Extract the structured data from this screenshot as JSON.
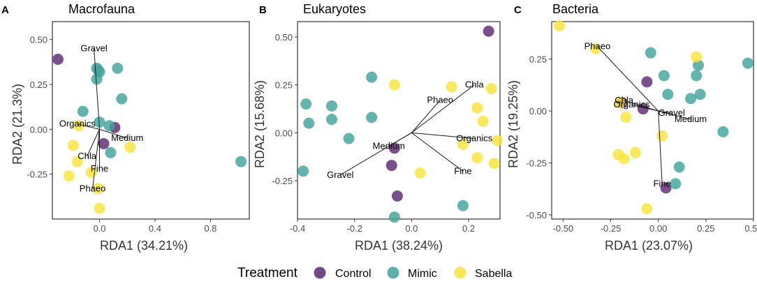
{
  "legend": {
    "title": "Treatment",
    "items": [
      {
        "name": "Control",
        "color": "#5B2A72"
      },
      {
        "name": "Mimic",
        "color": "#3FA39A"
      },
      {
        "name": "Sabella",
        "color": "#F9E33B"
      }
    ]
  },
  "chart_data": [
    {
      "type": "scatter",
      "panel_label": "A",
      "title": "Macrofauna",
      "xlabel": "RDA1 (34.21%)",
      "ylabel": "RDA2 (21.3%)",
      "xlim": [
        -0.34,
        1.08
      ],
      "ylim": [
        -0.5,
        0.6
      ],
      "xticks": [
        0.0,
        0.4,
        0.8
      ],
      "xtick_labels": [
        "0.0",
        "0.4",
        "0.8"
      ],
      "yticks": [
        -0.25,
        0.0,
        0.25,
        0.5
      ],
      "ytick_labels": [
        "-0.25",
        "0.00",
        "0.25",
        "0.50"
      ],
      "series": [
        {
          "name": "Control",
          "x": [
            -0.3,
            0.11,
            0.03
          ],
          "y": [
            0.39,
            0.01,
            -0.08
          ]
        },
        {
          "name": "Mimic",
          "x": [
            -0.02,
            -0.01,
            0.0,
            0.13,
            -0.02,
            0.16,
            -0.12,
            0.0,
            0.07,
            0.08,
            1.02
          ],
          "y": [
            0.34,
            0.33,
            0.32,
            0.34,
            0.28,
            0.17,
            0.1,
            0.04,
            0.02,
            -0.13,
            -0.18
          ]
        },
        {
          "name": "Sabella",
          "x": [
            -0.15,
            0.22,
            -0.19,
            -0.16,
            -0.06,
            -0.22,
            -0.01,
            0.0
          ],
          "y": [
            0.02,
            -0.1,
            -0.09,
            -0.18,
            -0.24,
            -0.26,
            -0.33,
            -0.44
          ]
        }
      ],
      "vectors": [
        {
          "label": "Gravel",
          "x": -0.04,
          "y": 0.45
        },
        {
          "label": "Organics",
          "x": -0.16,
          "y": 0.03
        },
        {
          "label": "Medium",
          "x": 0.2,
          "y": -0.05
        },
        {
          "label": "Chla",
          "x": -0.09,
          "y": -0.15
        },
        {
          "label": "Fine",
          "x": 0.0,
          "y": -0.22
        },
        {
          "label": "Phaeo",
          "x": -0.05,
          "y": -0.33
        }
      ]
    },
    {
      "type": "scatter",
      "panel_label": "B",
      "title": "Eukaryotes",
      "xlabel": "RDA1 (38.24%)",
      "ylabel": "RDA2 (15.68%)",
      "xlim": [
        -0.4,
        0.31
      ],
      "ylim": [
        -0.45,
        0.58
      ],
      "xticks": [
        -0.4,
        -0.2,
        0.0,
        0.2
      ],
      "xtick_labels": [
        "-0.4",
        "-0.2",
        "0.0",
        "0.2"
      ],
      "yticks": [
        -0.25,
        0.0,
        0.25,
        0.5
      ],
      "ytick_labels": [
        "-0.25",
        "0.00",
        "0.25",
        "0.50"
      ],
      "series": [
        {
          "name": "Control",
          "x": [
            0.27,
            -0.06,
            -0.07,
            -0.05
          ],
          "y": [
            0.53,
            -0.08,
            -0.17,
            -0.33
          ]
        },
        {
          "name": "Mimic",
          "x": [
            -0.14,
            -0.37,
            -0.28,
            -0.14,
            -0.36,
            -0.28,
            -0.22,
            -0.38,
            0.18,
            -0.06
          ],
          "y": [
            0.29,
            0.15,
            0.14,
            0.08,
            0.05,
            0.07,
            -0.03,
            -0.2,
            -0.38,
            -0.44
          ]
        },
        {
          "name": "Sabella",
          "x": [
            0.14,
            -0.06,
            0.28,
            0.23,
            0.25,
            0.3,
            0.18,
            0.23,
            0.29,
            0.03
          ],
          "y": [
            0.24,
            0.25,
            0.23,
            0.13,
            0.06,
            -0.04,
            -0.06,
            -0.13,
            -0.16,
            -0.21
          ]
        }
      ],
      "vectors": [
        {
          "label": "Chla",
          "x": 0.22,
          "y": 0.25
        },
        {
          "label": "Phaeo",
          "x": 0.1,
          "y": 0.17
        },
        {
          "label": "Organics",
          "x": 0.22,
          "y": -0.03
        },
        {
          "label": "Medium",
          "x": -0.08,
          "y": -0.07
        },
        {
          "label": "Fine",
          "x": 0.18,
          "y": -0.2
        },
        {
          "label": "Gravel",
          "x": -0.25,
          "y": -0.22
        }
      ]
    },
    {
      "type": "scatter",
      "panel_label": "C",
      "title": "Bacteria",
      "xlabel": "RDA1 (23.07%)",
      "ylabel": "RDA2 (19.25%)",
      "xlim": [
        -0.56,
        0.5
      ],
      "ylim": [
        -0.52,
        0.43
      ],
      "xticks": [
        -0.5,
        -0.25,
        0.0,
        0.25,
        0.5
      ],
      "xtick_labels": [
        "-0.50",
        "-0.25",
        "0.00",
        "0.25",
        "0.50"
      ],
      "yticks": [
        -0.5,
        -0.25,
        0.0,
        0.25
      ],
      "ytick_labels": [
        "-0.50",
        "-0.25",
        "0.00",
        "0.25"
      ],
      "series": [
        {
          "name": "Control",
          "x": [
            -0.06,
            -0.19,
            -0.08,
            0.04
          ],
          "y": [
            0.14,
            0.04,
            0.01,
            -0.37
          ]
        },
        {
          "name": "Mimic",
          "x": [
            -0.04,
            0.21,
            0.47,
            0.03,
            0.2,
            0.05,
            0.17,
            0.22,
            0.34,
            0.11,
            0.09
          ],
          "y": [
            0.28,
            0.22,
            0.23,
            0.17,
            0.17,
            0.08,
            0.06,
            0.08,
            -0.1,
            -0.27,
            -0.35
          ]
        },
        {
          "name": "Sabella",
          "x": [
            -0.52,
            -0.33,
            0.2,
            -0.2,
            -0.17,
            0.02,
            -0.12,
            -0.21,
            -0.18,
            -0.06
          ],
          "y": [
            0.41,
            0.3,
            0.26,
            0.04,
            -0.03,
            -0.12,
            -0.2,
            -0.21,
            -0.23,
            -0.47
          ]
        }
      ],
      "vectors": [
        {
          "label": "Phaeo",
          "x": -0.32,
          "y": 0.31
        },
        {
          "label": "Chla",
          "x": -0.18,
          "y": 0.05
        },
        {
          "label": "Organics",
          "x": -0.14,
          "y": 0.03
        },
        {
          "label": "Gravel",
          "x": 0.07,
          "y": -0.01
        },
        {
          "label": "Medium",
          "x": 0.17,
          "y": -0.04
        },
        {
          "label": "Fine",
          "x": 0.02,
          "y": -0.35
        }
      ]
    }
  ]
}
